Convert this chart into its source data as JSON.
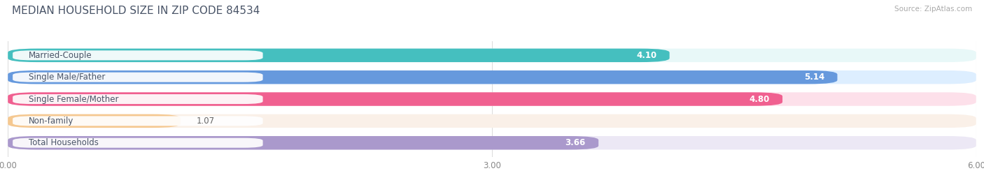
{
  "title": "MEDIAN HOUSEHOLD SIZE IN ZIP CODE 84534",
  "source": "Source: ZipAtlas.com",
  "categories": [
    "Married-Couple",
    "Single Male/Father",
    "Single Female/Mother",
    "Non-family",
    "Total Households"
  ],
  "values": [
    4.1,
    5.14,
    4.8,
    1.07,
    3.66
  ],
  "bar_colors": [
    "#45bfbf",
    "#6699dd",
    "#f06090",
    "#f5c890",
    "#aa99cc"
  ],
  "bg_colors": [
    "#e8f8f8",
    "#ddeeff",
    "#fde0ea",
    "#faf0e8",
    "#ece8f5"
  ],
  "xlim": [
    0,
    6.0
  ],
  "xticks": [
    0.0,
    3.0,
    6.0
  ],
  "xtick_labels": [
    "0.00",
    "3.00",
    "6.00"
  ],
  "title_fontsize": 11,
  "label_fontsize": 8.5,
  "value_fontsize": 8.5,
  "bar_height": 0.62,
  "background_color": "#ffffff",
  "title_color": "#4a5568",
  "source_color": "#aaaaaa",
  "grid_color": "#dddddd"
}
